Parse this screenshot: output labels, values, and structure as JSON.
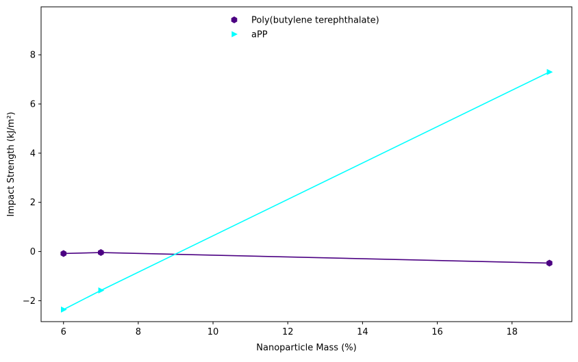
{
  "chart_data": {
    "type": "line",
    "title": "",
    "xlabel": "Nanoparticle Mass (%)",
    "ylabel": "Impact Strength (kJ/m²)",
    "xlim": [
      5.4,
      19.6
    ],
    "ylim": [
      -2.85,
      9.95
    ],
    "xticks": [
      6,
      8,
      10,
      12,
      14,
      16,
      18
    ],
    "yticks": [
      -2,
      0,
      2,
      4,
      6,
      8
    ],
    "grid": false,
    "legend_position": "top-center",
    "series": [
      {
        "name": "Poly(butylene terephthalate)",
        "color": "#4b0082",
        "marker": "hexagon",
        "x": [
          6,
          7,
          19
        ],
        "y": [
          -0.08,
          -0.04,
          -0.47
        ]
      },
      {
        "name": "aPP",
        "color": "#00ffff",
        "marker": "triangle-right",
        "x": [
          6,
          7,
          19
        ],
        "y": [
          -2.36,
          -1.58,
          7.3
        ]
      }
    ]
  }
}
